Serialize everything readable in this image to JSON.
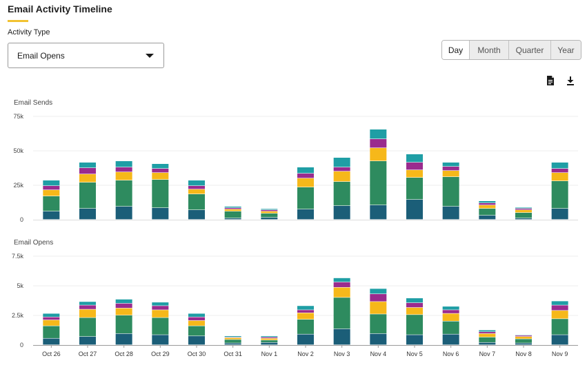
{
  "header": {
    "title": "Email Activity Timeline"
  },
  "activity": {
    "label": "Activity Type",
    "selected": "Email Opens"
  },
  "range_buttons": [
    "Day",
    "Month",
    "Quarter",
    "Year"
  ],
  "toolbar": {
    "export_icon": "document-icon",
    "download_icon": "download-icon"
  },
  "colors": {
    "accent": "#f2c230",
    "segments": [
      "#1b5e78",
      "#2e8b5f",
      "#f6b81a",
      "#9a2b8e",
      "#1f9ea5"
    ]
  },
  "chart_data": [
    {
      "type": "bar",
      "stacked": true,
      "title": "Email Sends",
      "categories": [
        "Oct 26",
        "Oct 27",
        "Oct 28",
        "Oct 29",
        "Oct 30",
        "Oct 31",
        "Nov 1",
        "Nov 2",
        "Nov 3",
        "Nov 4",
        "Nov 5",
        "Nov 6",
        "Nov 7",
        "Nov 8",
        "Nov 9"
      ],
      "series": [
        {
          "values": [
            6000,
            8000,
            9500,
            8500,
            7000,
            1000,
            1500,
            7500,
            10000,
            10500,
            14500,
            9500,
            3000,
            1000,
            8000
          ]
        },
        {
          "values": [
            11000,
            19000,
            19000,
            20500,
            11500,
            5000,
            3000,
            16000,
            17500,
            32000,
            16000,
            21500,
            5000,
            4000,
            20000
          ]
        },
        {
          "values": [
            4500,
            6000,
            6000,
            5000,
            3500,
            1500,
            1500,
            6500,
            7500,
            9500,
            5500,
            4500,
            2500,
            2000,
            6000
          ]
        },
        {
          "values": [
            3000,
            4500,
            3500,
            3000,
            2500,
            1000,
            1000,
            3500,
            3000,
            6500,
            5500,
            3000,
            1500,
            1000,
            3000
          ]
        },
        {
          "values": [
            4000,
            4000,
            4500,
            3500,
            4000,
            1000,
            800,
            4500,
            7000,
            7000,
            6000,
            3000,
            1500,
            800,
            4500
          ]
        }
      ],
      "ylim": [
        0,
        75000
      ],
      "yticks": [
        "0",
        "25k",
        "50k",
        "75k"
      ]
    },
    {
      "type": "bar",
      "stacked": true,
      "title": "Email Opens",
      "categories": [
        "Oct 26",
        "Oct 27",
        "Oct 28",
        "Oct 29",
        "Oct 30",
        "Oct 31",
        "Nov 1",
        "Nov 2",
        "Nov 3",
        "Nov 4",
        "Nov 5",
        "Nov 6",
        "Nov 7",
        "Nov 8",
        "Nov 9"
      ],
      "series": [
        {
          "values": [
            550,
            700,
            950,
            850,
            750,
            150,
            200,
            900,
            1350,
            950,
            850,
            900,
            200,
            150,
            850
          ]
        },
        {
          "values": [
            1050,
            1600,
            1550,
            1450,
            850,
            300,
            200,
            1250,
            2650,
            1650,
            1700,
            1100,
            450,
            350,
            1350
          ]
        },
        {
          "values": [
            500,
            700,
            600,
            650,
            450,
            150,
            150,
            550,
            850,
            1050,
            600,
            650,
            300,
            200,
            700
          ]
        },
        {
          "values": [
            250,
            350,
            400,
            350,
            300,
            50,
            100,
            250,
            450,
            650,
            400,
            300,
            150,
            100,
            450
          ]
        },
        {
          "values": [
            300,
            300,
            350,
            300,
            300,
            100,
            100,
            350,
            350,
            450,
            400,
            300,
            150,
            50,
            350
          ]
        }
      ],
      "ylim": [
        0,
        7500
      ],
      "yticks": [
        "0",
        "2.5k",
        "5k",
        "7.5k"
      ]
    }
  ]
}
